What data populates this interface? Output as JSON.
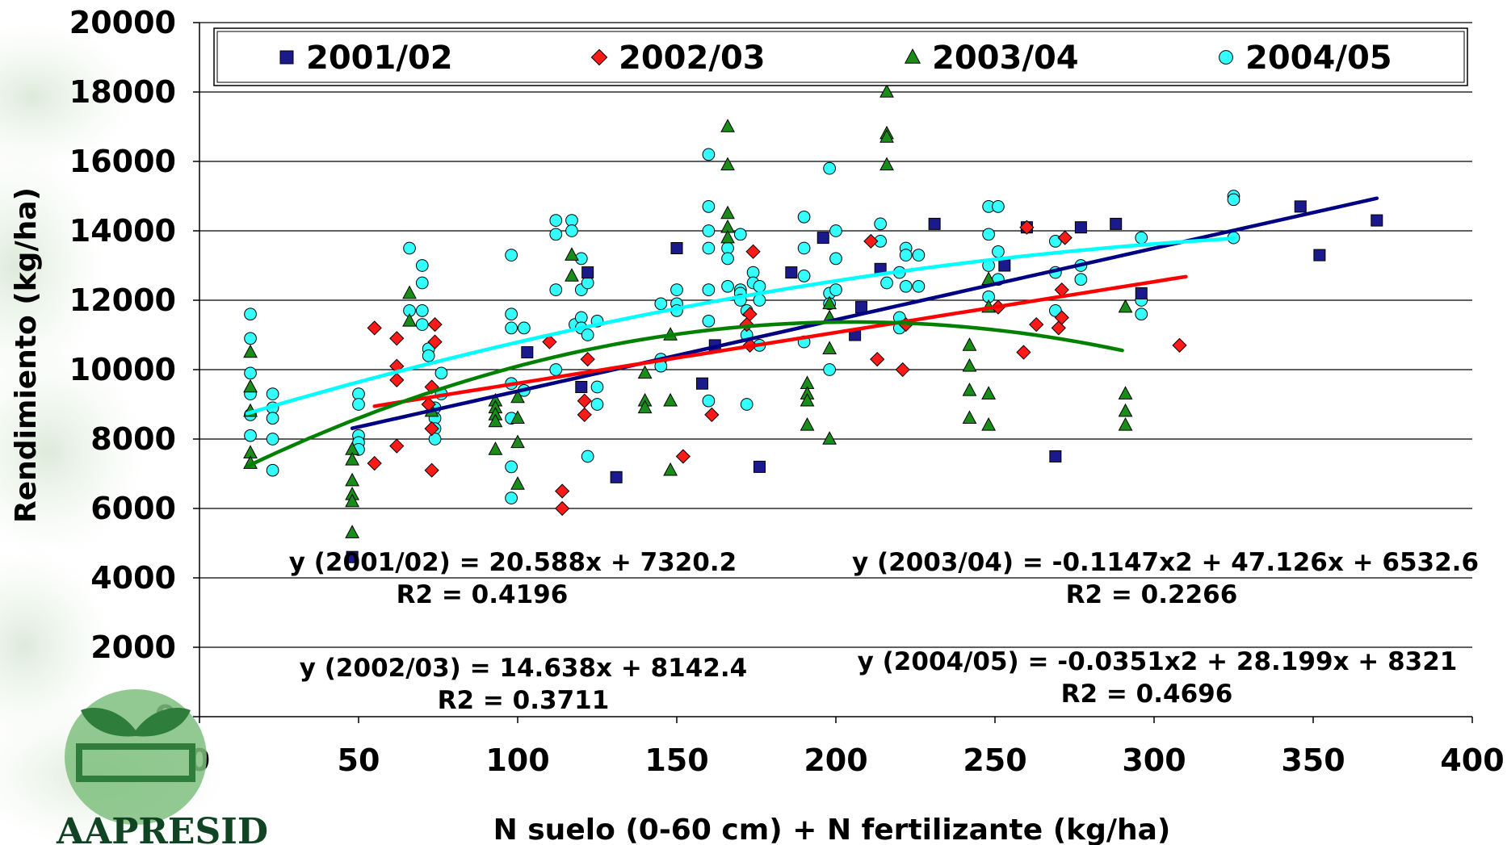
{
  "chart_data": {
    "type": "scatter",
    "title": "",
    "xlabel": "N suelo (0-60 cm) + N fertilizante (kg/ha)",
    "ylabel": "Rendimiento (kg/ha)",
    "xlim": [
      0,
      400
    ],
    "ylim": [
      0,
      20000
    ],
    "x_ticks": [
      "0",
      "50",
      "100",
      "150",
      "200",
      "250",
      "300",
      "350",
      "400"
    ],
    "y_ticks": [
      "0",
      "2000",
      "4000",
      "6000",
      "8000",
      "10000",
      "12000",
      "14000",
      "16000",
      "18000",
      "20000"
    ],
    "grid": "horizontal",
    "legend_position": "top",
    "series": [
      {
        "name": "2001/02",
        "marker": "square",
        "color": "#1a1a8c",
        "trend_color": "#000080",
        "trend": {
          "type": "linear",
          "a": 0,
          "b": 20.588,
          "c": 7320.2,
          "x_range": [
            48,
            370
          ]
        },
        "equation": "y (2001/02) = 20.588x + 7320.2",
        "r2": "R2 = 0.4196",
        "points": [
          [
            48,
            4600
          ],
          [
            103,
            10500
          ],
          [
            120,
            9500
          ],
          [
            122,
            12800
          ],
          [
            131,
            6900
          ],
          [
            150,
            13500
          ],
          [
            158,
            9600
          ],
          [
            162,
            10700
          ],
          [
            176,
            7200
          ],
          [
            186,
            12800
          ],
          [
            196,
            13800
          ],
          [
            206,
            11000
          ],
          [
            208,
            11800
          ],
          [
            214,
            12900
          ],
          [
            231,
            14200
          ],
          [
            253,
            13000
          ],
          [
            260,
            14100
          ],
          [
            269,
            7500
          ],
          [
            277,
            14100
          ],
          [
            288,
            14200
          ],
          [
            296,
            12200
          ],
          [
            346,
            14700
          ],
          [
            352,
            13300
          ],
          [
            370,
            14300
          ]
        ]
      },
      {
        "name": "2002/03",
        "marker": "diamond",
        "color": "#ff1a1a",
        "trend_color": "#ff0000",
        "trend": {
          "type": "linear",
          "a": 0,
          "b": 14.638,
          "c": 8142.4,
          "x_range": [
            55,
            310
          ]
        },
        "equation": "y (2002/03) = 14.638x + 8142.4",
        "r2": "R2 = 0.3711",
        "points": [
          [
            55,
            11200
          ],
          [
            55,
            7300
          ],
          [
            62,
            10900
          ],
          [
            62,
            10100
          ],
          [
            62,
            7800
          ],
          [
            62,
            9700
          ],
          [
            72,
            9000
          ],
          [
            73,
            8300
          ],
          [
            73,
            7100
          ],
          [
            73,
            9500
          ],
          [
            74,
            11300
          ],
          [
            74,
            10800
          ],
          [
            110,
            10800
          ],
          [
            114,
            6500
          ],
          [
            114,
            6000
          ],
          [
            121,
            8700
          ],
          [
            121,
            9100
          ],
          [
            122,
            10300
          ],
          [
            152,
            7500
          ],
          [
            161,
            8700
          ],
          [
            172,
            11300
          ],
          [
            173,
            11600
          ],
          [
            173,
            10700
          ],
          [
            174,
            13400
          ],
          [
            211,
            13700
          ],
          [
            213,
            10300
          ],
          [
            221,
            10000
          ],
          [
            222,
            11300
          ],
          [
            251,
            11800
          ],
          [
            259,
            10500
          ],
          [
            260,
            14100
          ],
          [
            263,
            11300
          ],
          [
            270,
            11200
          ],
          [
            271,
            11500
          ],
          [
            271,
            12300
          ],
          [
            272,
            13800
          ],
          [
            308,
            10700
          ]
        ]
      },
      {
        "name": "2003/04",
        "marker": "triangle",
        "color": "#1a8c1a",
        "trend_color": "#008000",
        "trend": {
          "type": "poly2",
          "a": -0.1147,
          "b": 47.126,
          "c": 6532.6,
          "x_range": [
            15,
            290
          ]
        },
        "equation": "y (2003/04) = -0.1147x2 + 47.126x + 6532.6",
        "r2": "R2 = 0.2266",
        "points": [
          [
            16,
            10500
          ],
          [
            16,
            9500
          ],
          [
            16,
            8800
          ],
          [
            16,
            7600
          ],
          [
            16,
            7300
          ],
          [
            48,
            7700
          ],
          [
            48,
            7400
          ],
          [
            48,
            6800
          ],
          [
            48,
            6400
          ],
          [
            48,
            6200
          ],
          [
            48,
            5300
          ],
          [
            66,
            12200
          ],
          [
            66,
            11400
          ],
          [
            73,
            8800
          ],
          [
            93,
            9100
          ],
          [
            93,
            8900
          ],
          [
            93,
            8700
          ],
          [
            93,
            8500
          ],
          [
            93,
            7700
          ],
          [
            100,
            9200
          ],
          [
            100,
            8600
          ],
          [
            100,
            7900
          ],
          [
            100,
            6700
          ],
          [
            117,
            13300
          ],
          [
            117,
            12700
          ],
          [
            140,
            9900
          ],
          [
            140,
            9100
          ],
          [
            140,
            8900
          ],
          [
            148,
            11000
          ],
          [
            148,
            9100
          ],
          [
            148,
            7100
          ],
          [
            166,
            17000
          ],
          [
            166,
            15900
          ],
          [
            166,
            14500
          ],
          [
            166,
            14100
          ],
          [
            166,
            13800
          ],
          [
            191,
            9600
          ],
          [
            191,
            9300
          ],
          [
            191,
            9100
          ],
          [
            191,
            8400
          ],
          [
            198,
            11900
          ],
          [
            198,
            11500
          ],
          [
            198,
            10600
          ],
          [
            198,
            8000
          ],
          [
            216,
            18000
          ],
          [
            216,
            16800
          ],
          [
            216,
            16700
          ],
          [
            216,
            15900
          ],
          [
            242,
            10700
          ],
          [
            242,
            10100
          ],
          [
            242,
            9400
          ],
          [
            242,
            8600
          ],
          [
            248,
            12600
          ],
          [
            248,
            11800
          ],
          [
            248,
            9300
          ],
          [
            248,
            8400
          ],
          [
            291,
            11800
          ],
          [
            291,
            9300
          ],
          [
            291,
            8800
          ],
          [
            291,
            8400
          ]
        ]
      },
      {
        "name": "2004/05",
        "marker": "circle",
        "color": "#33ffff",
        "trend_color": "#00ffff",
        "trend": {
          "type": "poly2",
          "a": -0.0351,
          "b": 28.199,
          "c": 8321,
          "x_range": [
            15,
            325
          ]
        },
        "equation": "y (2004/05) = -0.0351x2 + 28.199x + 8321",
        "r2": "R2 = 0.4696",
        "points": [
          [
            16,
            11600
          ],
          [
            16,
            10900
          ],
          [
            16,
            9900
          ],
          [
            16,
            9300
          ],
          [
            16,
            8700
          ],
          [
            16,
            8100
          ],
          [
            23,
            9300
          ],
          [
            23,
            8900
          ],
          [
            23,
            8600
          ],
          [
            23,
            8000
          ],
          [
            23,
            7100
          ],
          [
            50,
            9300
          ],
          [
            50,
            9000
          ],
          [
            50,
            8100
          ],
          [
            50,
            7900
          ],
          [
            50,
            7700
          ],
          [
            66,
            13500
          ],
          [
            66,
            11700
          ],
          [
            70,
            13000
          ],
          [
            70,
            12500
          ],
          [
            70,
            11700
          ],
          [
            70,
            11300
          ],
          [
            72,
            10600
          ],
          [
            72,
            10400
          ],
          [
            74,
            8900
          ],
          [
            74,
            8600
          ],
          [
            74,
            8300
          ],
          [
            74,
            8000
          ],
          [
            76,
            9900
          ],
          [
            76,
            9300
          ],
          [
            98,
            13300
          ],
          [
            98,
            11600
          ],
          [
            98,
            11200
          ],
          [
            98,
            9600
          ],
          [
            98,
            8600
          ],
          [
            98,
            7200
          ],
          [
            98,
            6300
          ],
          [
            102,
            11200
          ],
          [
            102,
            9400
          ],
          [
            112,
            14300
          ],
          [
            112,
            13900
          ],
          [
            112,
            12300
          ],
          [
            112,
            10000
          ],
          [
            117,
            14300
          ],
          [
            117,
            14000
          ],
          [
            118,
            11300
          ],
          [
            120,
            13200
          ],
          [
            120,
            12300
          ],
          [
            120,
            11500
          ],
          [
            120,
            11200
          ],
          [
            122,
            12500
          ],
          [
            122,
            11000
          ],
          [
            122,
            7500
          ],
          [
            125,
            11400
          ],
          [
            125,
            9500
          ],
          [
            125,
            9000
          ],
          [
            145,
            11900
          ],
          [
            145,
            10300
          ],
          [
            145,
            10100
          ],
          [
            150,
            12300
          ],
          [
            150,
            11900
          ],
          [
            150,
            11700
          ],
          [
            160,
            16200
          ],
          [
            160,
            14700
          ],
          [
            160,
            14000
          ],
          [
            160,
            13500
          ],
          [
            160,
            12300
          ],
          [
            160,
            11400
          ],
          [
            160,
            9100
          ],
          [
            166,
            13500
          ],
          [
            166,
            13200
          ],
          [
            166,
            12400
          ],
          [
            170,
            13900
          ],
          [
            170,
            12300
          ],
          [
            170,
            12200
          ],
          [
            170,
            12000
          ],
          [
            172,
            11700
          ],
          [
            172,
            11000
          ],
          [
            172,
            9000
          ],
          [
            174,
            12800
          ],
          [
            174,
            12500
          ],
          [
            176,
            12400
          ],
          [
            176,
            12000
          ],
          [
            176,
            10700
          ],
          [
            190,
            14400
          ],
          [
            190,
            13500
          ],
          [
            190,
            12700
          ],
          [
            190,
            10800
          ],
          [
            198,
            15800
          ],
          [
            198,
            12200
          ],
          [
            198,
            11900
          ],
          [
            198,
            10000
          ],
          [
            200,
            14000
          ],
          [
            200,
            13200
          ],
          [
            200,
            12300
          ],
          [
            214,
            14200
          ],
          [
            214,
            13700
          ],
          [
            216,
            12500
          ],
          [
            220,
            12800
          ],
          [
            220,
            11500
          ],
          [
            220,
            11200
          ],
          [
            222,
            13500
          ],
          [
            222,
            13300
          ],
          [
            222,
            12400
          ],
          [
            226,
            13300
          ],
          [
            226,
            12400
          ],
          [
            248,
            14700
          ],
          [
            248,
            13900
          ],
          [
            248,
            12100
          ],
          [
            248,
            13000
          ],
          [
            251,
            14700
          ],
          [
            251,
            13400
          ],
          [
            251,
            12600
          ],
          [
            269,
            13700
          ],
          [
            269,
            12800
          ],
          [
            269,
            11700
          ],
          [
            277,
            13000
          ],
          [
            277,
            12600
          ],
          [
            296,
            13800
          ],
          [
            296,
            12000
          ],
          [
            296,
            11600
          ],
          [
            325,
            15000
          ],
          [
            325,
            14900
          ],
          [
            325,
            13800
          ]
        ]
      }
    ]
  },
  "logo": {
    "text": "AAPRESID"
  }
}
